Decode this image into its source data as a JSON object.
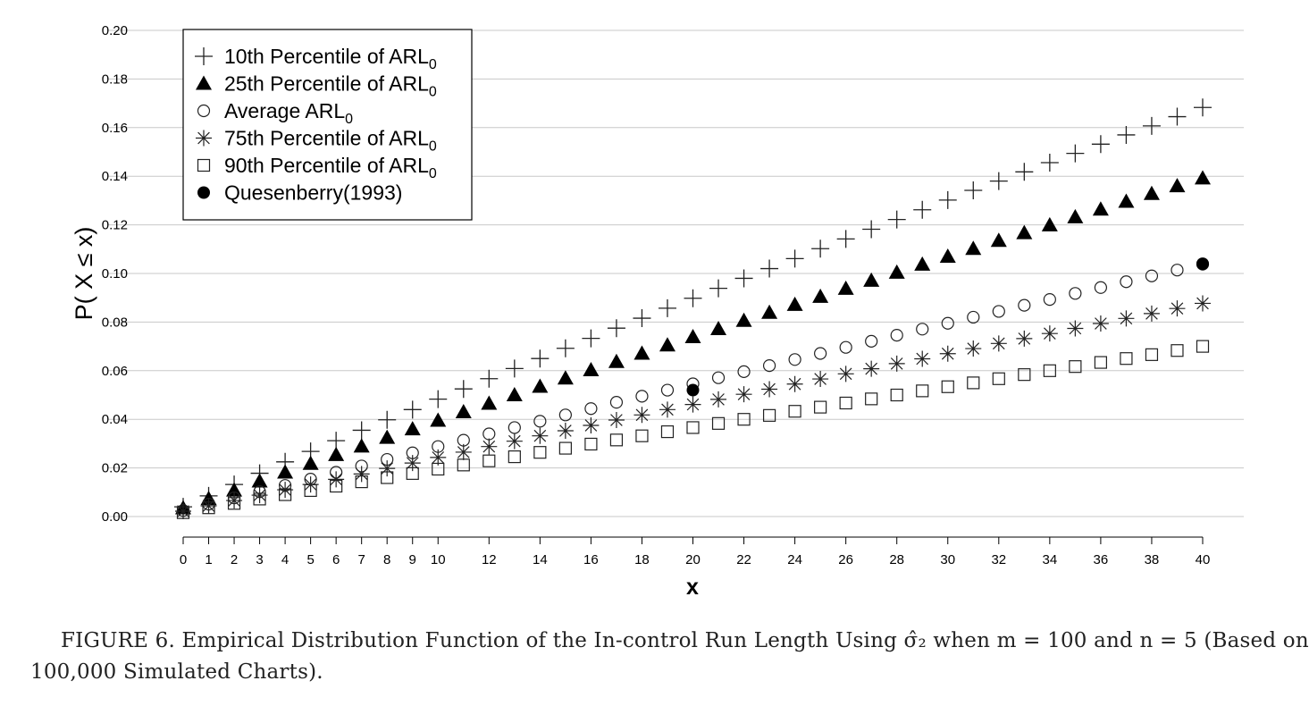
{
  "chart_data": {
    "type": "scatter",
    "xlabel": "x",
    "ylabel": "P( X ≤ x)",
    "xlim": [
      0,
      40
    ],
    "ylim": [
      0,
      0.2
    ],
    "grid": "horizontal",
    "legend_position": "top-left",
    "x_ticks": [
      "0",
      "1",
      "2",
      "3",
      "4",
      "5",
      "6",
      "7",
      "8",
      "9",
      "10",
      "12",
      "14",
      "16",
      "18",
      "20",
      "22",
      "24",
      "26",
      "28",
      "30",
      "32",
      "34",
      "36",
      "38",
      "40"
    ],
    "y_ticks": [
      "0.00",
      "0.02",
      "0.04",
      "0.06",
      "0.08",
      "0.10",
      "0.12",
      "0.14",
      "0.16",
      "0.18",
      "0.20"
    ],
    "series": [
      {
        "name": "10th Percentile of ARL",
        "name_sub": "0",
        "marker": "plus",
        "x": [
          0,
          1,
          2,
          3,
          4,
          5,
          6,
          7,
          8,
          9,
          10,
          11,
          12,
          13,
          14,
          15,
          16,
          17,
          18,
          19,
          20,
          21,
          22,
          23,
          24,
          25,
          26,
          27,
          28,
          29,
          30,
          31,
          32,
          33,
          34,
          35,
          36,
          37,
          38,
          39,
          40
        ],
        "values": [
          0.004,
          0.0085,
          0.0132,
          0.0178,
          0.0225,
          0.0268,
          0.0312,
          0.0355,
          0.0398,
          0.044,
          0.0483,
          0.0525,
          0.0567,
          0.0609,
          0.065,
          0.0692,
          0.0733,
          0.0775,
          0.0816,
          0.0857,
          0.0898,
          0.0939,
          0.098,
          0.102,
          0.1061,
          0.1102,
          0.1142,
          0.1182,
          0.1222,
          0.1262,
          0.1302,
          0.1342,
          0.138,
          0.1418,
          0.1456,
          0.1494,
          0.1532,
          0.157,
          0.1607,
          0.1645,
          0.1683
        ]
      },
      {
        "name": "25th Percentile of ARL",
        "name_sub": "0",
        "marker": "filled-triangle",
        "x": [
          0,
          1,
          2,
          3,
          4,
          5,
          6,
          7,
          8,
          9,
          10,
          11,
          12,
          13,
          14,
          15,
          16,
          17,
          18,
          19,
          20,
          21,
          22,
          23,
          24,
          25,
          26,
          27,
          28,
          29,
          30,
          31,
          32,
          33,
          34,
          35,
          36,
          37,
          38,
          39,
          40
        ],
        "values": [
          0.0035,
          0.0073,
          0.0108,
          0.0145,
          0.0182,
          0.0218,
          0.0254,
          0.0289,
          0.0325,
          0.036,
          0.0395,
          0.043,
          0.0465,
          0.05,
          0.0535,
          0.0569,
          0.0603,
          0.0637,
          0.0671,
          0.0705,
          0.0739,
          0.0772,
          0.0806,
          0.0839,
          0.0872,
          0.0905,
          0.0938,
          0.0971,
          0.1004,
          0.1037,
          0.107,
          0.1102,
          0.1135,
          0.1167,
          0.1199,
          0.1232,
          0.1264,
          0.1296,
          0.1328,
          0.136,
          0.1392
        ]
      },
      {
        "name": "Average ARL",
        "name_sub": "0",
        "marker": "open-circle",
        "x": [
          0,
          1,
          2,
          3,
          4,
          5,
          6,
          7,
          8,
          9,
          10,
          11,
          12,
          13,
          14,
          15,
          16,
          17,
          18,
          19,
          20,
          21,
          22,
          23,
          24,
          25,
          26,
          27,
          28,
          29,
          30,
          31,
          32,
          33,
          34,
          35,
          36,
          37,
          38,
          39,
          40
        ],
        "values": [
          0.0025,
          0.0051,
          0.0077,
          0.0102,
          0.0128,
          0.0154,
          0.0182,
          0.0208,
          0.0235,
          0.0262,
          0.0288,
          0.0314,
          0.034,
          0.0366,
          0.0392,
          0.0418,
          0.0444,
          0.047,
          0.0495,
          0.052,
          0.0546,
          0.0571,
          0.0596,
          0.0621,
          0.0646,
          0.0671,
          0.0696,
          0.0721,
          0.0746,
          0.0771,
          0.0795,
          0.082,
          0.0844,
          0.0869,
          0.0893,
          0.0918,
          0.0942,
          0.0966,
          0.099,
          0.1014,
          0.1038
        ]
      },
      {
        "name": "75th Percentile of ARL",
        "name_sub": "0",
        "marker": "asterisk",
        "x": [
          0,
          1,
          2,
          3,
          4,
          5,
          6,
          7,
          8,
          9,
          10,
          11,
          12,
          13,
          14,
          15,
          16,
          17,
          18,
          19,
          20,
          21,
          22,
          23,
          24,
          25,
          26,
          27,
          28,
          29,
          30,
          31,
          32,
          33,
          34,
          35,
          36,
          37,
          38,
          39,
          40
        ],
        "values": [
          0.0022,
          0.0044,
          0.0066,
          0.0088,
          0.011,
          0.0132,
          0.0153,
          0.0175,
          0.0198,
          0.022,
          0.0243,
          0.0265,
          0.0288,
          0.031,
          0.0332,
          0.0353,
          0.0375,
          0.0397,
          0.0418,
          0.044,
          0.0461,
          0.0482,
          0.0503,
          0.0524,
          0.0545,
          0.0566,
          0.0587,
          0.0608,
          0.0629,
          0.0649,
          0.067,
          0.0691,
          0.0712,
          0.0732,
          0.0753,
          0.0774,
          0.0794,
          0.0815,
          0.0835,
          0.0856,
          0.0877
        ]
      },
      {
        "name": "90th Percentile of ARL",
        "name_sub": "0",
        "marker": "open-square",
        "x": [
          0,
          1,
          2,
          3,
          4,
          5,
          6,
          7,
          8,
          9,
          10,
          11,
          12,
          13,
          14,
          15,
          16,
          17,
          18,
          19,
          20,
          21,
          22,
          23,
          24,
          25,
          26,
          27,
          28,
          29,
          30,
          31,
          32,
          33,
          34,
          35,
          36,
          37,
          38,
          39,
          40
        ],
        "values": [
          0.0016,
          0.0036,
          0.0054,
          0.0072,
          0.009,
          0.0107,
          0.0125,
          0.0143,
          0.016,
          0.0177,
          0.0195,
          0.0212,
          0.0229,
          0.0246,
          0.0264,
          0.0281,
          0.0298,
          0.0315,
          0.0332,
          0.0349,
          0.0366,
          0.0383,
          0.04,
          0.0416,
          0.0433,
          0.045,
          0.0467,
          0.0484,
          0.05,
          0.0517,
          0.0534,
          0.055,
          0.0567,
          0.0584,
          0.06,
          0.0617,
          0.0634,
          0.065,
          0.0666,
          0.0683,
          0.07
        ]
      },
      {
        "name": "Quesenberry(1993)",
        "name_sub": "",
        "marker": "filled-circle",
        "x": [
          20,
          40
        ],
        "values": [
          0.052,
          0.104
        ]
      }
    ]
  },
  "caption": {
    "line1": "FIGURE 6. Empirical Distribution Function of the In-control Run Length Using σ̂₂ when m = 100 and n = 5 (Based on",
    "line2": "100,000 Simulated Charts)."
  }
}
